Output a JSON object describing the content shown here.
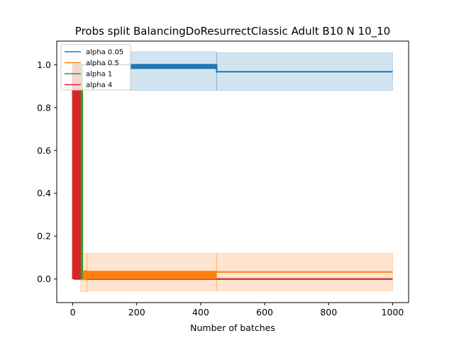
{
  "chart_data": {
    "type": "line",
    "title": "Probs split BalancingDoResurrectClassic Adult B10 N 10_10",
    "xlabel": "Number of batches",
    "ylabel": "",
    "xlim": [
      -50,
      1050
    ],
    "ylim": [
      -0.11,
      1.11
    ],
    "xticks": [
      0,
      200,
      400,
      600,
      800,
      1000
    ],
    "xtick_labels": [
      "0",
      "200",
      "400",
      "600",
      "800",
      "1000"
    ],
    "yticks": [
      0.0,
      0.2,
      0.4,
      0.6,
      0.8,
      1.0
    ],
    "ytick_labels": [
      "0.0",
      "0.2",
      "0.4",
      "0.6",
      "0.8",
      "1.0"
    ],
    "grid": false,
    "legend_position": "top-left",
    "series": [
      {
        "name": "alpha 0.05",
        "color": "#1f77b4",
        "points": [
          [
            0,
            1.0
          ],
          [
            180,
            1.0
          ],
          [
            180,
            0.98
          ],
          [
            180,
            1.0
          ],
          [
            450,
            1.0
          ],
          [
            450,
            0.967
          ],
          [
            1000,
            0.967
          ]
        ],
        "bands": [
          {
            "x0": 180,
            "x1": 450,
            "lo": 0.88,
            "hi": 1.06
          },
          {
            "x0": 450,
            "x1": 1000,
            "lo": 0.88,
            "hi": 1.055
          }
        ]
      },
      {
        "name": "alpha 0.5",
        "color": "#ff7f0e",
        "points": [
          [
            0,
            1.0
          ],
          [
            25,
            1.0
          ],
          [
            25,
            0.0
          ],
          [
            45,
            0.0
          ],
          [
            45,
            0.035
          ],
          [
            450,
            0.035
          ],
          [
            450,
            0.033
          ],
          [
            1000,
            0.033
          ]
        ],
        "bands": [
          {
            "x0": 25,
            "x1": 45,
            "lo": -0.06,
            "hi": 0.12
          },
          {
            "x0": 45,
            "x1": 450,
            "lo": -0.055,
            "hi": 0.12
          },
          {
            "x0": 450,
            "x1": 1000,
            "lo": -0.055,
            "hi": 0.12
          }
        ]
      },
      {
        "name": "alpha 1",
        "color": "#2ca02c",
        "points": [
          [
            0,
            1.0
          ],
          [
            30,
            1.0
          ],
          [
            30,
            0.0
          ],
          [
            1000,
            0.0
          ]
        ],
        "bands": []
      },
      {
        "name": "alpha 4",
        "color": "#d62728",
        "points": [
          [
            0,
            1.0
          ],
          [
            5,
            1.0
          ],
          [
            5,
            0.0
          ],
          [
            1000,
            0.0
          ]
        ],
        "bands": []
      }
    ]
  }
}
